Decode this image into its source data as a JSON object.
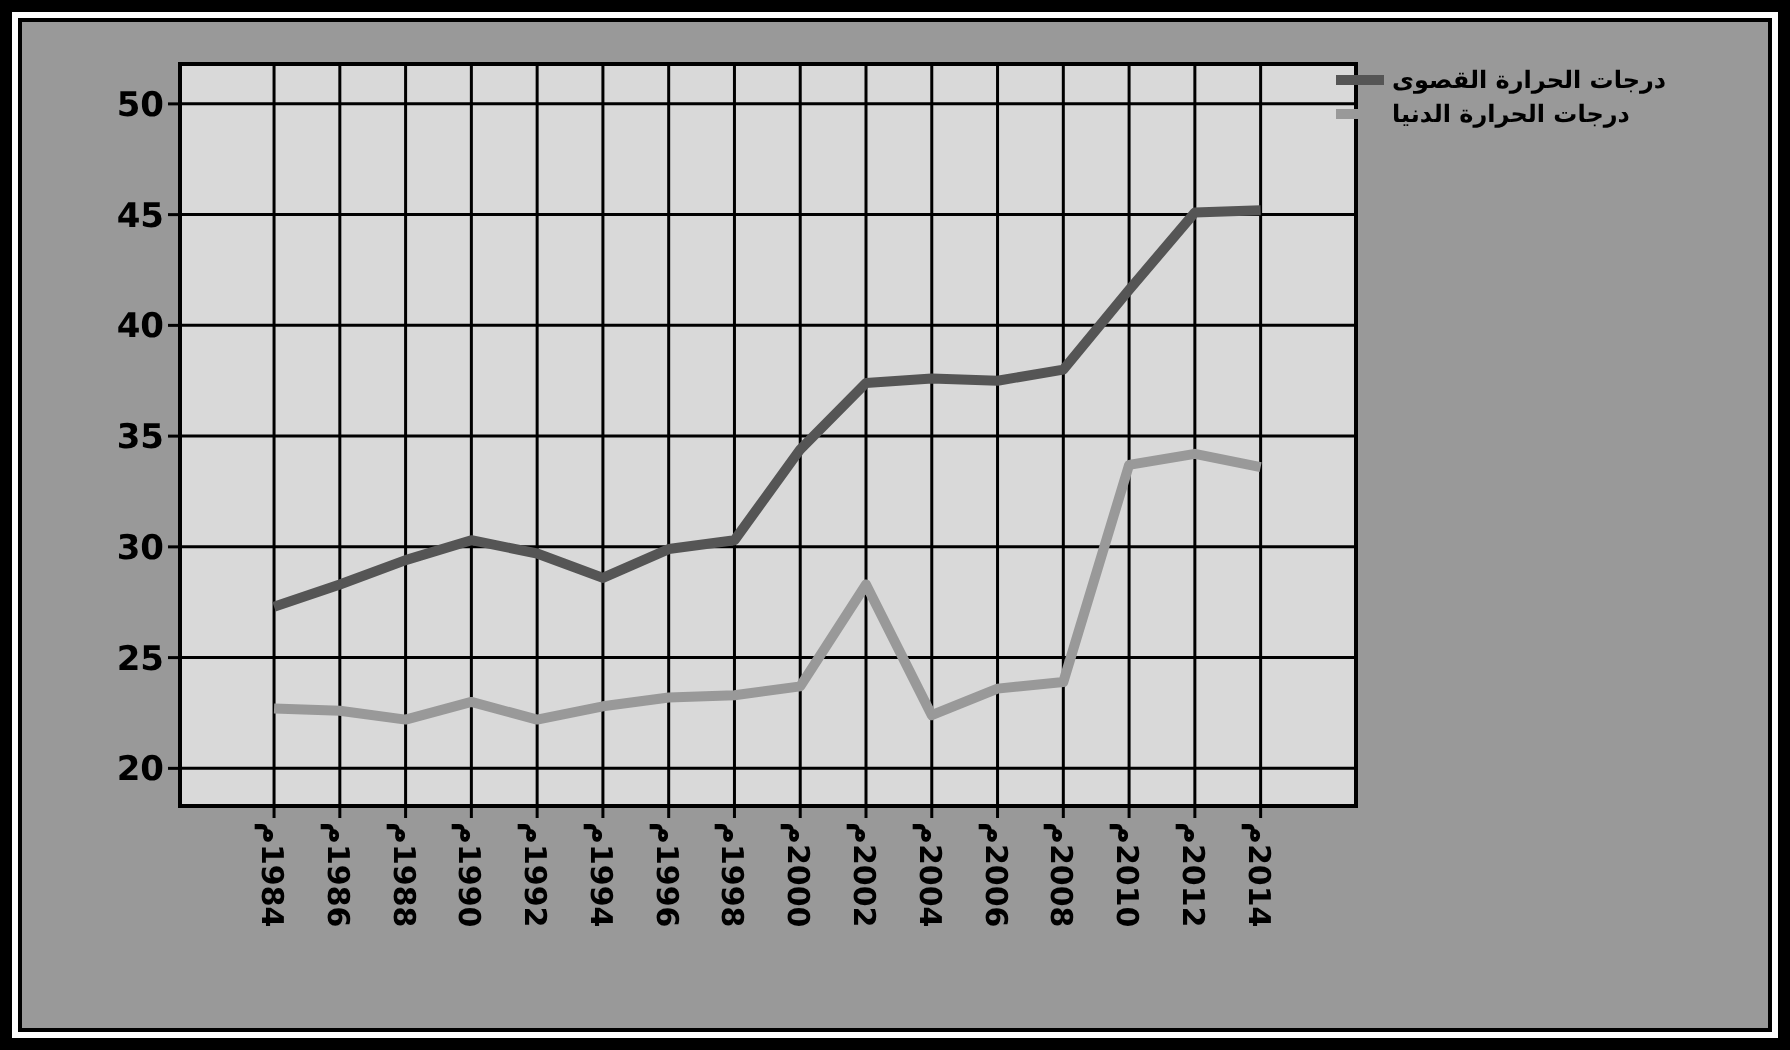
{
  "chart_data": {
    "type": "line",
    "categories": [
      "1984م",
      "1986م",
      "1988م",
      "1990م",
      "1992م",
      "1994م",
      "1996م",
      "1998م",
      "2000م",
      "2002م",
      "2004م",
      "2006م",
      "2008م",
      "2010م",
      "2012م",
      "2014م"
    ],
    "series": [
      {
        "name": "درجات الحرارة القصوى",
        "color": "#555555",
        "values": [
          27.3,
          28.3,
          29.4,
          30.3,
          29.7,
          28.6,
          29.9,
          30.3,
          34.4,
          37.4,
          37.6,
          37.5,
          38.0,
          41.6,
          45.1,
          45.2
        ]
      },
      {
        "name": "درجات الحرارة الدنيا",
        "color": "#999999",
        "values": [
          22.7,
          22.6,
          22.2,
          23.0,
          22.2,
          22.8,
          23.2,
          23.3,
          23.7,
          28.3,
          22.4,
          23.6,
          23.9,
          33.7,
          34.2,
          33.6
        ]
      }
    ],
    "ylim": [
      18.3,
      51.8
    ],
    "yticks": [
      20,
      25,
      30,
      35,
      40,
      45,
      50
    ],
    "grid": true,
    "legend": "top right",
    "marker": "none",
    "line_style": "solid"
  }
}
